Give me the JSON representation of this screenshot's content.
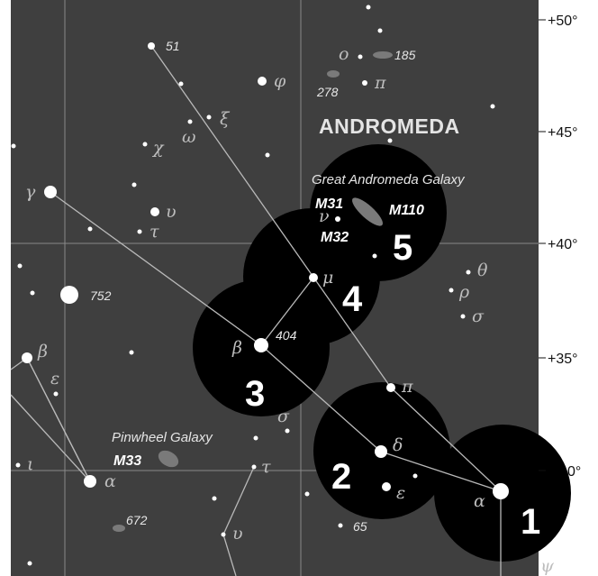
{
  "constellation": "ANDROMEDA",
  "declination_labels": [
    "+50°",
    "+45°",
    "+40°",
    "+35°",
    "0°"
  ],
  "galaxies": {
    "m31_name": "Great Andromeda Galaxy",
    "m33_name": "Pinwheel Galaxy"
  },
  "objects": {
    "m31": "M31",
    "m32": "M32",
    "m110": "M110",
    "m33": "M33"
  },
  "catalog_numbers": {
    "n51": "51",
    "n185": "185",
    "n278": "278",
    "n752": "752",
    "n404": "404",
    "n672": "672",
    "n65": "65"
  },
  "greek_labels": {
    "phi": "φ",
    "pi_top": "π",
    "omicron": "o",
    "xi": "ξ",
    "omega": "ω",
    "chi": "χ",
    "gamma": "γ",
    "upsilon": "υ",
    "tau": "τ",
    "nu": "ν",
    "mu": "μ",
    "theta": "θ",
    "rho": "ρ",
    "sigma_right": "σ",
    "beta_andromeda": "β",
    "pi_andromeda": "π",
    "delta": "δ",
    "epsilon_andromeda": "ε",
    "alpha_andromeda": "α",
    "sigma_tri": "σ",
    "tau_lower": "τ",
    "beta_left": "β",
    "epsilon_left": "ε",
    "alpha_left": "α",
    "iota": "ι",
    "upsilon_lower": "υ",
    "psi": "ψ"
  },
  "star_hopping_steps": [
    "1",
    "2",
    "3",
    "4",
    "5"
  ],
  "colors": {
    "sky": "#3f3f3f",
    "hop_circle": "#000000",
    "grid": "#8a8a8a",
    "constellation_line": "#b9b9b9",
    "background": "#ffffff"
  }
}
